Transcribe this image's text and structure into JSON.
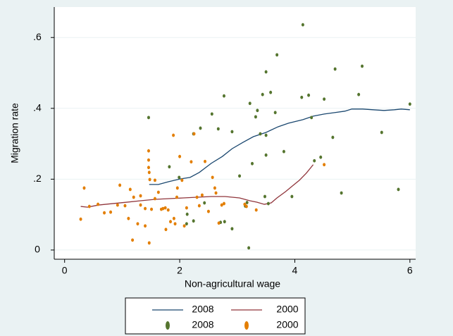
{
  "chart_data": {
    "type": "scatter",
    "x_label": "Non-agricultural wage",
    "y_label": "Migration rate",
    "xlim": [
      -0.18,
      6.1
    ],
    "ylim": [
      -0.026,
      0.686
    ],
    "xticks": [
      0,
      2,
      4,
      6
    ],
    "yticks": [
      0,
      {
        "value": 0.2,
        "label": ".2"
      },
      {
        "value": 0.4,
        "label": ".4"
      },
      {
        "value": 0.6,
        "label": ".6"
      }
    ],
    "grid": true,
    "series": [
      {
        "name": "2008",
        "type": "line",
        "color": "#1a476f",
        "x": [
          1.47,
          1.63,
          1.81,
          2.02,
          2.18,
          2.34,
          2.55,
          2.74,
          2.91,
          3.1,
          3.28,
          3.5,
          3.71,
          3.89,
          4.14,
          4.32,
          4.51,
          4.69,
          4.87,
          4.99,
          5.18,
          5.36,
          5.55,
          5.73,
          5.85,
          6.0
        ],
        "values": [
          0.185,
          0.185,
          0.193,
          0.201,
          0.205,
          0.219,
          0.245,
          0.264,
          0.286,
          0.304,
          0.32,
          0.332,
          0.348,
          0.358,
          0.368,
          0.378,
          0.384,
          0.388,
          0.392,
          0.398,
          0.398,
          0.396,
          0.394,
          0.396,
          0.398,
          0.396
        ]
      },
      {
        "name": "2000",
        "type": "line",
        "color": "#90353b",
        "x": [
          0.28,
          0.4,
          0.59,
          0.83,
          1.08,
          1.32,
          1.57,
          1.81,
          2.06,
          2.3,
          2.55,
          2.79,
          3.04,
          3.22,
          3.34,
          3.47,
          3.59,
          3.69,
          3.84,
          3.96,
          4.08,
          4.2,
          4.32
        ],
        "values": [
          0.123,
          0.121,
          0.127,
          0.131,
          0.135,
          0.139,
          0.143,
          0.145,
          0.147,
          0.149,
          0.151,
          0.151,
          0.147,
          0.139,
          0.135,
          0.129,
          0.133,
          0.147,
          0.165,
          0.181,
          0.197,
          0.217,
          0.241
        ]
      },
      {
        "name": "2008",
        "type": "scatter",
        "color": "#55752f",
        "x": [
          1.46,
          1.82,
          2.24,
          2.36,
          2.56,
          2.67,
          2.77,
          2.91,
          3.04,
          2.78,
          2.71,
          2.91,
          3.2,
          3.22,
          3.32,
          3.35,
          3.44,
          3.4,
          3.5,
          3.5,
          3.54,
          3.58,
          3.5,
          3.66,
          3.69,
          3.81,
          3.95,
          4.12,
          4.14,
          4.24,
          4.29,
          4.34,
          4.45,
          4.51,
          4.66,
          4.7,
          4.81,
          5.11,
          5.17,
          5.51,
          5.8,
          6.0,
          2.13,
          2.24,
          1.99,
          2.43,
          2.12,
          3.14,
          3.17,
          3.48,
          3.26
        ],
        "values": [
          0.374,
          0.235,
          0.328,
          0.344,
          0.384,
          0.342,
          0.435,
          0.334,
          0.209,
          0.08,
          0.078,
          0.06,
          0.006,
          0.414,
          0.376,
          0.394,
          0.439,
          0.328,
          0.503,
          0.268,
          0.131,
          0.445,
          0.324,
          0.388,
          0.551,
          0.278,
          0.151,
          0.431,
          0.636,
          0.437,
          0.374,
          0.252,
          0.262,
          0.426,
          0.318,
          0.511,
          0.161,
          0.439,
          0.519,
          0.332,
          0.171,
          0.412,
          0.101,
          0.082,
          0.205,
          0.133,
          0.074,
          0.124,
          0.134,
          0.151,
          0.244
        ]
      },
      {
        "name": "2000",
        "type": "scatter",
        "color": "#e37e00",
        "x": [
          0.28,
          0.34,
          0.69,
          0.92,
          0.96,
          1.14,
          1.05,
          1.11,
          1.2,
          1.27,
          1.18,
          1.32,
          1.32,
          1.4,
          1.4,
          1.46,
          1.46,
          1.46,
          1.47,
          1.47,
          1.48,
          1.51,
          1.57,
          1.57,
          1.63,
          1.68,
          1.71,
          1.75,
          1.76,
          1.8,
          1.84,
          1.89,
          1.9,
          1.92,
          1.95,
          1.96,
          2.0,
          2.04,
          2.08,
          2.12,
          2.2,
          2.25,
          2.3,
          2.34,
          2.39,
          2.44,
          2.5,
          2.57,
          2.61,
          2.63,
          2.68,
          2.73,
          2.77,
          3.13,
          3.16,
          3.33,
          4.51,
          0.8,
          0.58,
          0.43
        ],
        "values": [
          0.087,
          0.175,
          0.105,
          0.127,
          0.183,
          0.171,
          0.125,
          0.089,
          0.149,
          0.074,
          0.028,
          0.127,
          0.153,
          0.117,
          0.068,
          0.28,
          0.254,
          0.233,
          0.219,
          0.02,
          0.199,
          0.115,
          0.197,
          0.145,
          0.163,
          0.115,
          0.117,
          0.119,
          0.058,
          0.113,
          0.08,
          0.324,
          0.089,
          0.074,
          0.149,
          0.175,
          0.264,
          0.197,
          0.068,
          0.119,
          0.249,
          0.328,
          0.149,
          0.125,
          0.155,
          0.25,
          0.109,
          0.205,
          0.175,
          0.161,
          0.076,
          0.127,
          0.131,
          0.129,
          0.123,
          0.113,
          0.241,
          0.107,
          0.129,
          0.123
        ]
      }
    ]
  }
}
